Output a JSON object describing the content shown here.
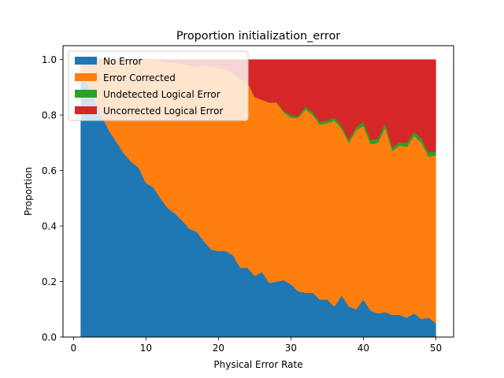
{
  "chart_data": {
    "type": "area",
    "title": "Proportion initialization_error",
    "xlabel": "Physical Error Rate",
    "ylabel": "Proportion",
    "xlim": [
      -1.45,
      52.45
    ],
    "ylim": [
      0,
      1.05
    ],
    "xticks": [
      0,
      10,
      20,
      30,
      40,
      50
    ],
    "yticks": [
      0.0,
      0.2,
      0.4,
      0.6,
      0.8,
      1.0
    ],
    "grid": false,
    "legend_position": "top-left",
    "x": [
      1,
      2,
      3,
      4,
      5,
      6,
      7,
      8,
      9,
      10,
      11,
      12,
      13,
      14,
      15,
      16,
      17,
      18,
      19,
      20,
      21,
      22,
      23,
      24,
      25,
      26,
      27,
      28,
      29,
      30,
      31,
      32,
      33,
      34,
      35,
      36,
      37,
      38,
      39,
      40,
      41,
      42,
      43,
      44,
      45,
      46,
      47,
      48,
      49,
      50
    ],
    "series": [
      {
        "name": "No Error",
        "color": "#1f77b4",
        "values": [
          0.95,
          0.91,
          0.85,
          0.79,
          0.74,
          0.7,
          0.66,
          0.63,
          0.61,
          0.555,
          0.54,
          0.5,
          0.465,
          0.445,
          0.42,
          0.39,
          0.38,
          0.345,
          0.315,
          0.31,
          0.31,
          0.295,
          0.25,
          0.25,
          0.22,
          0.235,
          0.195,
          0.2,
          0.205,
          0.19,
          0.165,
          0.16,
          0.16,
          0.135,
          0.135,
          0.11,
          0.15,
          0.11,
          0.1,
          0.135,
          0.095,
          0.085,
          0.09,
          0.08,
          0.08,
          0.07,
          0.085,
          0.065,
          0.07,
          0.05
        ]
      },
      {
        "name": "Error Corrected",
        "color": "#ff7f0e",
        "values": [
          0.05,
          0.09,
          0.15,
          0.21,
          0.26,
          0.3,
          0.34,
          0.37,
          0.39,
          0.445,
          0.46,
          0.495,
          0.525,
          0.545,
          0.565,
          0.59,
          0.595,
          0.635,
          0.66,
          0.66,
          0.655,
          0.655,
          0.68,
          0.67,
          0.645,
          0.62,
          0.65,
          0.645,
          0.605,
          0.6,
          0.625,
          0.66,
          0.64,
          0.63,
          0.635,
          0.67,
          0.6,
          0.59,
          0.645,
          0.625,
          0.6,
          0.615,
          0.665,
          0.59,
          0.61,
          0.615,
          0.64,
          0.635,
          0.58,
          0.605
        ]
      },
      {
        "name": "Undetected Logical Error",
        "color": "#2ca02c",
        "values": [
          0,
          0,
          0,
          0,
          0,
          0,
          0,
          0,
          0,
          0,
          0,
          0,
          0,
          0,
          0,
          0,
          0,
          0,
          0,
          0,
          0,
          0,
          0,
          0,
          0,
          0,
          0,
          0.002,
          0.005,
          0.01,
          0.005,
          0.01,
          0.01,
          0.01,
          0.01,
          0.01,
          0.012,
          0.01,
          0.012,
          0.015,
          0.015,
          0.015,
          0.015,
          0.012,
          0.012,
          0.015,
          0.015,
          0.015,
          0.015,
          0.015
        ]
      },
      {
        "name": "Uncorrected Logical Error",
        "color": "#d62728",
        "values": [
          0,
          0,
          0,
          0,
          0,
          0,
          0,
          0,
          0,
          0,
          0,
          0.005,
          0.01,
          0.01,
          0.015,
          0.02,
          0.025,
          0.02,
          0.025,
          0.03,
          0.035,
          0.05,
          0.07,
          0.08,
          0.135,
          0.145,
          0.155,
          0.153,
          0.185,
          0.2,
          0.205,
          0.17,
          0.19,
          0.225,
          0.22,
          0.21,
          0.238,
          0.29,
          0.243,
          0.225,
          0.29,
          0.285,
          0.23,
          0.318,
          0.298,
          0.3,
          0.26,
          0.285,
          0.335,
          0.33
        ]
      }
    ]
  }
}
